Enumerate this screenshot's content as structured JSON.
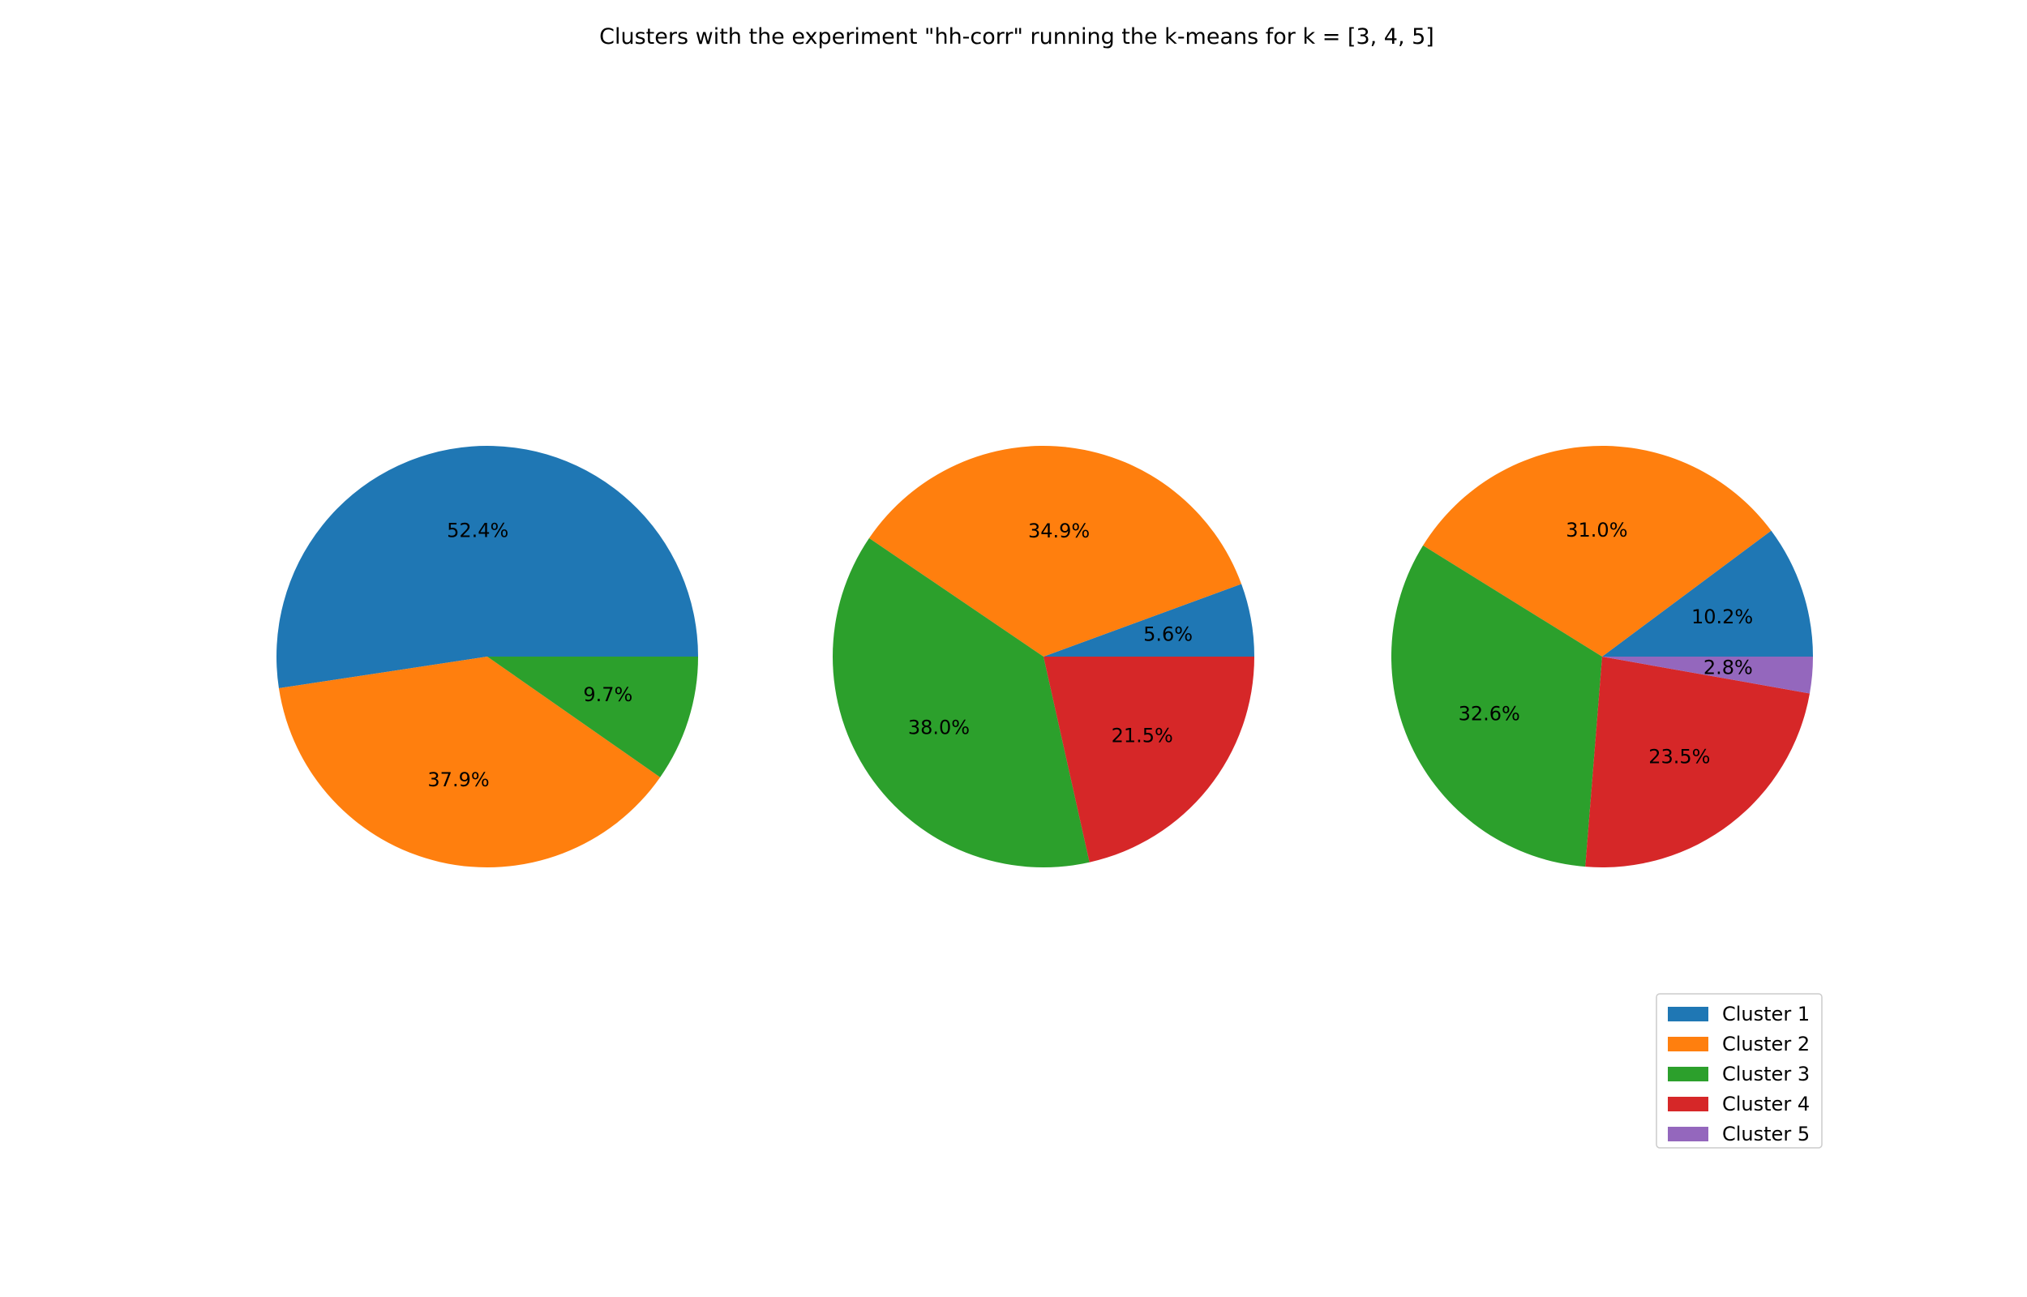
{
  "chart_data": {
    "title": "Clusters with the experiment \"hh-corr\" running the k-means for k = [3, 4, 5]",
    "colors": [
      "#1f77b4",
      "#ff7f0e",
      "#2ca02c",
      "#d62728",
      "#9467bd"
    ],
    "legend": {
      "placement": "lower-right",
      "entries": [
        "Cluster 1",
        "Cluster 2",
        "Cluster 3",
        "Cluster 4",
        "Cluster 5"
      ]
    },
    "pies": [
      {
        "type": "pie",
        "k": 3,
        "values": [
          52.4,
          37.9,
          9.7
        ],
        "labels": [
          "52.4%",
          "37.9%",
          "9.7%"
        ]
      },
      {
        "type": "pie",
        "k": 4,
        "values": [
          5.6,
          34.9,
          38.0,
          21.5
        ],
        "labels": [
          "5.6%",
          "34.9%",
          "38.0%",
          "21.5%"
        ]
      },
      {
        "type": "pie",
        "k": 5,
        "values": [
          10.2,
          31.0,
          32.6,
          23.5,
          2.8
        ],
        "labels": [
          "10.2%",
          "31.0%",
          "32.6%",
          "23.5%",
          "2.8%"
        ]
      }
    ]
  }
}
